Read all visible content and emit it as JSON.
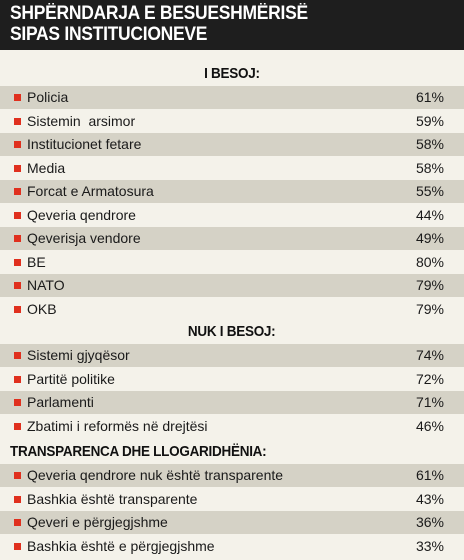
{
  "chart_data": {
    "type": "table",
    "title_line1": "SHPËRNDARJA E BESUESHMËRISË",
    "title_line2": "SIPAS INSTITUCIONEVE",
    "accent_color": "#e0301e",
    "header_color": "#1e1e1e",
    "sections": [
      {
        "heading": "I BESOJ:",
        "align": "center",
        "rows": [
          {
            "label": "Policia",
            "value": "61%"
          },
          {
            "label": "Sistemin  arsimor",
            "value": "59%"
          },
          {
            "label": "Institucionet fetare",
            "value": "58%"
          },
          {
            "label": "Media",
            "value": "58%"
          },
          {
            "label": "Forcat e Armatosura",
            "value": "55%"
          },
          {
            "label": "Qeveria qendrore",
            "value": "44%"
          },
          {
            "label": "Qeverisja vendore",
            "value": "49%"
          },
          {
            "label": "BE",
            "value": "80%"
          },
          {
            "label": "NATO",
            "value": "79%"
          },
          {
            "label": "OKB",
            "value": "79%"
          }
        ]
      },
      {
        "heading": "NUK I BESOJ:",
        "align": "center",
        "rows": [
          {
            "label": "Sistemi gjyqësor",
            "value": "74%"
          },
          {
            "label": "Partitë politike",
            "value": "72%"
          },
          {
            "label": "Parlamenti",
            "value": "71%"
          },
          {
            "label": "Zbatimi i reformës në drejtësi",
            "value": "46%"
          }
        ]
      },
      {
        "heading": "TRANSPARENCA DHE LLOGARIDHËNIA:",
        "align": "left",
        "rows": [
          {
            "label": "Qeveria qendrore nuk është transparente",
            "value": "61%"
          },
          {
            "label": "Bashkia është transparente",
            "value": "43%"
          },
          {
            "label": "Qeveri e përgjegjshme",
            "value": "36%"
          },
          {
            "label": "Bashkia është e përgjegjshme",
            "value": "33%"
          }
        ]
      }
    ]
  }
}
